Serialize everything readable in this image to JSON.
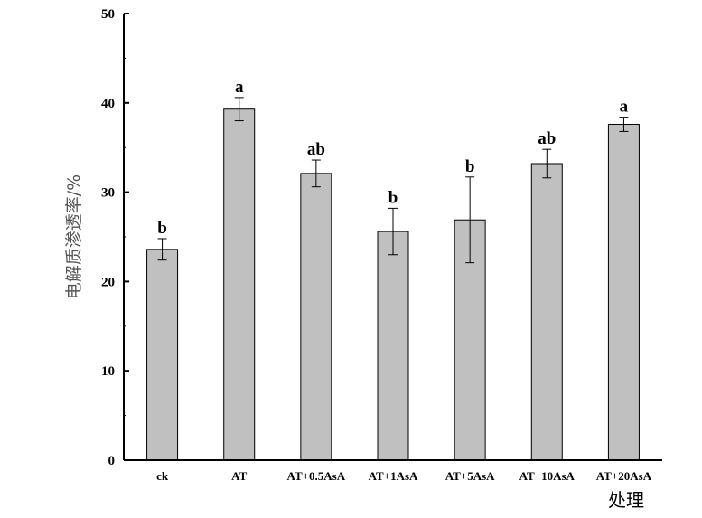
{
  "chart_data": {
    "type": "bar",
    "xlabel": "处理",
    "ylabel": "电解质渗透率/%",
    "ylim": [
      0,
      50
    ],
    "yticks": [
      0,
      10,
      20,
      30,
      40,
      50
    ],
    "grid": false,
    "categories": [
      "ck",
      "AT",
      "AT+0.5AsA",
      "AT+1AsA",
      "AT+5AsA",
      "AT+10AsA",
      "AT+20AsA"
    ],
    "values": [
      23.6,
      39.3,
      32.1,
      25.6,
      26.9,
      33.2,
      37.6
    ],
    "error": [
      1.2,
      1.3,
      1.5,
      2.6,
      4.8,
      1.6,
      0.8
    ],
    "significance": [
      "b",
      "a",
      "ab",
      "b",
      "b",
      "ab",
      "a"
    ],
    "bar_color": "#c0c0c0"
  }
}
